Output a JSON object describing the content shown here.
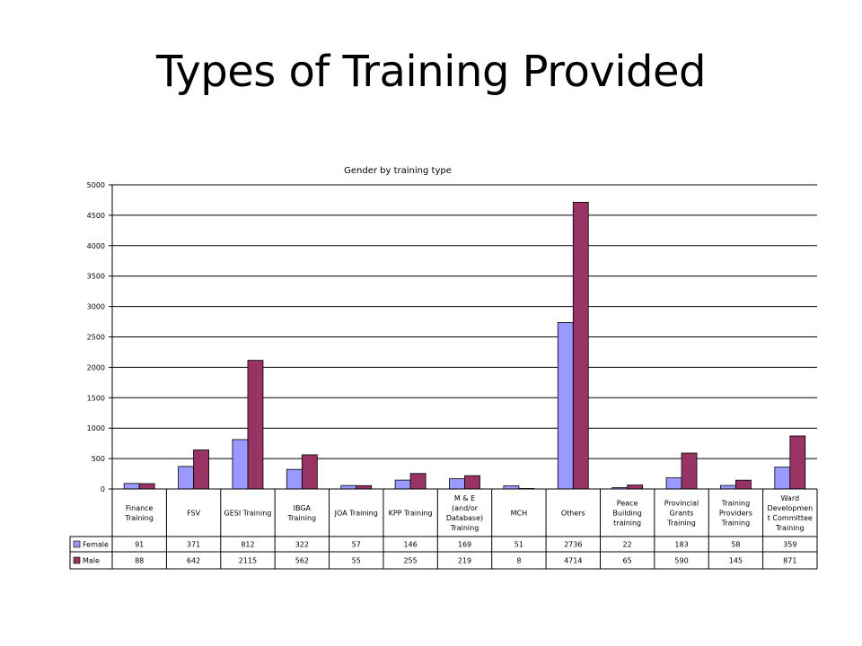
{
  "slide": {
    "title": "Types of Training Provided"
  },
  "chart_data": {
    "type": "bar",
    "title": "Gender by training type",
    "xlabel": "",
    "ylabel": "",
    "ylim": [
      0,
      5000
    ],
    "yticks": [
      0,
      500,
      1000,
      1500,
      2000,
      2500,
      3000,
      3500,
      4000,
      4500,
      5000
    ],
    "grid": true,
    "legend": "data-table",
    "categories": [
      [
        "Finance",
        "Training"
      ],
      [
        "FSV"
      ],
      [
        "GESI Training"
      ],
      [
        "IBGA",
        "Training"
      ],
      [
        "JOA Training"
      ],
      [
        "KPP Training"
      ],
      [
        "M & E",
        "(and/or",
        "Database)",
        "Training"
      ],
      [
        "MCH"
      ],
      [
        "Others"
      ],
      [
        "Peace",
        "Building",
        "training"
      ],
      [
        "Provincial",
        "Grants",
        "Training"
      ],
      [
        "Training",
        "Providers",
        "Training"
      ],
      [
        "Ward",
        "Developmen",
        "t Committee",
        "Training"
      ]
    ],
    "series": [
      {
        "name": "Female",
        "color": "#9999ff",
        "values": [
          91,
          371,
          812,
          322,
          57,
          146,
          169,
          51,
          2736,
          22,
          183,
          58,
          359
        ]
      },
      {
        "name": "Male",
        "color": "#993366",
        "values": [
          88,
          642,
          2115,
          562,
          55,
          255,
          219,
          8,
          4714,
          65,
          590,
          145,
          871
        ]
      }
    ]
  }
}
